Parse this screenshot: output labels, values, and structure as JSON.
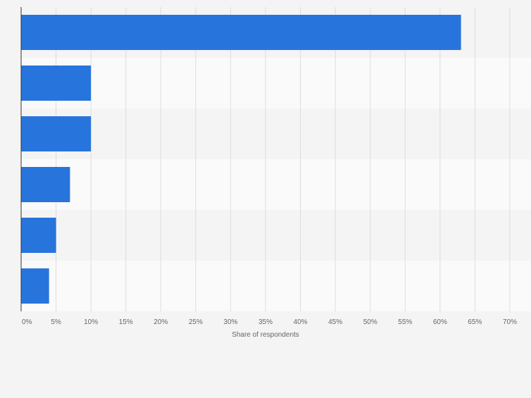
{
  "chart_data": {
    "type": "bar",
    "orientation": "horizontal",
    "categories": [
      "",
      "",
      "",
      "",
      "",
      ""
    ],
    "values": [
      63,
      10,
      10,
      7,
      5,
      4
    ],
    "xlabel": "Share of respondents",
    "ylabel": "",
    "xlim": [
      0,
      70
    ],
    "xticks": [
      0,
      5,
      10,
      15,
      20,
      25,
      30,
      35,
      40,
      45,
      50,
      55,
      60,
      65,
      70
    ],
    "tick_labels": [
      "0%",
      "5%",
      "10%",
      "15%",
      "20%",
      "25%",
      "30%",
      "35%",
      "40%",
      "45%",
      "50%",
      "55%",
      "60%",
      "65%",
      "70%"
    ],
    "grid": true,
    "legend": "none",
    "colors": {
      "bar": "#2775dc",
      "band_light": "#fafafa",
      "band_dark": "#f4f4f4",
      "grid": "#dddddd",
      "axis": "#333333",
      "tick_text": "#666666"
    }
  }
}
